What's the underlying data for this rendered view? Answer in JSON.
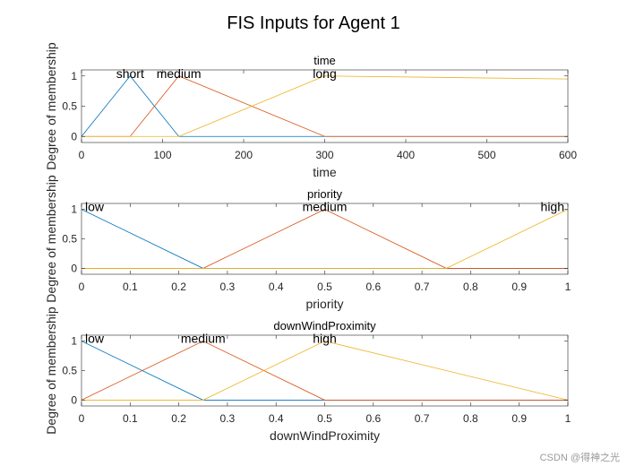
{
  "figure": {
    "title": "FIS Inputs for Agent 1",
    "watermark": "CSDN @得神之光"
  },
  "chart_data": [
    {
      "type": "line",
      "title": "time",
      "xlabel": "time",
      "ylabel": "Degree of membership",
      "xlim": [
        0,
        600
      ],
      "ylim": [
        -0.1,
        1.1
      ],
      "xticks": [
        0,
        100,
        200,
        300,
        400,
        500,
        600
      ],
      "yticks": [
        0,
        0.5,
        1
      ],
      "grid": false,
      "series": [
        {
          "name": "short",
          "color": "#0072BD",
          "x": [
            0,
            60,
            120,
            600
          ],
          "y": [
            0,
            1,
            0,
            0
          ],
          "label_x": 60
        },
        {
          "name": "medium",
          "color": "#D95319",
          "x": [
            0,
            60,
            120,
            300,
            600
          ],
          "y": [
            0,
            0,
            1,
            0,
            0
          ],
          "label_x": 120
        },
        {
          "name": "long",
          "color": "#EDB120",
          "x": [
            0,
            120,
            300,
            600
          ],
          "y": [
            0,
            0,
            1,
            0.95
          ],
          "label_x": 300
        }
      ]
    },
    {
      "type": "line",
      "title": "priority",
      "xlabel": "priority",
      "ylabel": "Degree of membership",
      "xlim": [
        0,
        1
      ],
      "ylim": [
        -0.1,
        1.1
      ],
      "xticks": [
        0,
        0.1,
        0.2,
        0.3,
        0.4,
        0.5,
        0.6,
        0.7,
        0.8,
        0.9,
        1
      ],
      "yticks": [
        0,
        0.5,
        1
      ],
      "grid": false,
      "series": [
        {
          "name": "low",
          "color": "#0072BD",
          "x": [
            0,
            0.25,
            1
          ],
          "y": [
            1,
            0,
            0
          ],
          "label_x": 0
        },
        {
          "name": "medium",
          "color": "#D95319",
          "x": [
            0,
            0.25,
            0.5,
            0.75,
            1
          ],
          "y": [
            0,
            0,
            1,
            0,
            0
          ],
          "label_x": 0.5
        },
        {
          "name": "high",
          "color": "#EDB120",
          "x": [
            0,
            0.75,
            1
          ],
          "y": [
            0,
            0,
            1
          ],
          "label_x": 1
        }
      ]
    },
    {
      "type": "line",
      "title": "downWindProximity",
      "xlabel": "downWindProximity",
      "ylabel": "Degree of membership",
      "xlim": [
        0,
        1
      ],
      "ylim": [
        -0.1,
        1.1
      ],
      "xticks": [
        0,
        0.1,
        0.2,
        0.3,
        0.4,
        0.5,
        0.6,
        0.7,
        0.8,
        0.9,
        1
      ],
      "yticks": [
        0,
        0.5,
        1
      ],
      "grid": false,
      "series": [
        {
          "name": "low",
          "color": "#0072BD",
          "x": [
            0,
            0.25,
            0.5,
            1
          ],
          "y": [
            1,
            0,
            0,
            0
          ],
          "label_x": 0
        },
        {
          "name": "medium",
          "color": "#D95319",
          "x": [
            0,
            0.25,
            0.5,
            1
          ],
          "y": [
            0,
            1,
            0,
            0
          ],
          "label_x": 0.25
        },
        {
          "name": "high",
          "color": "#EDB120",
          "x": [
            0,
            0.25,
            0.5,
            1
          ],
          "y": [
            0,
            0,
            1,
            0
          ],
          "label_x": 0.5
        }
      ]
    }
  ]
}
